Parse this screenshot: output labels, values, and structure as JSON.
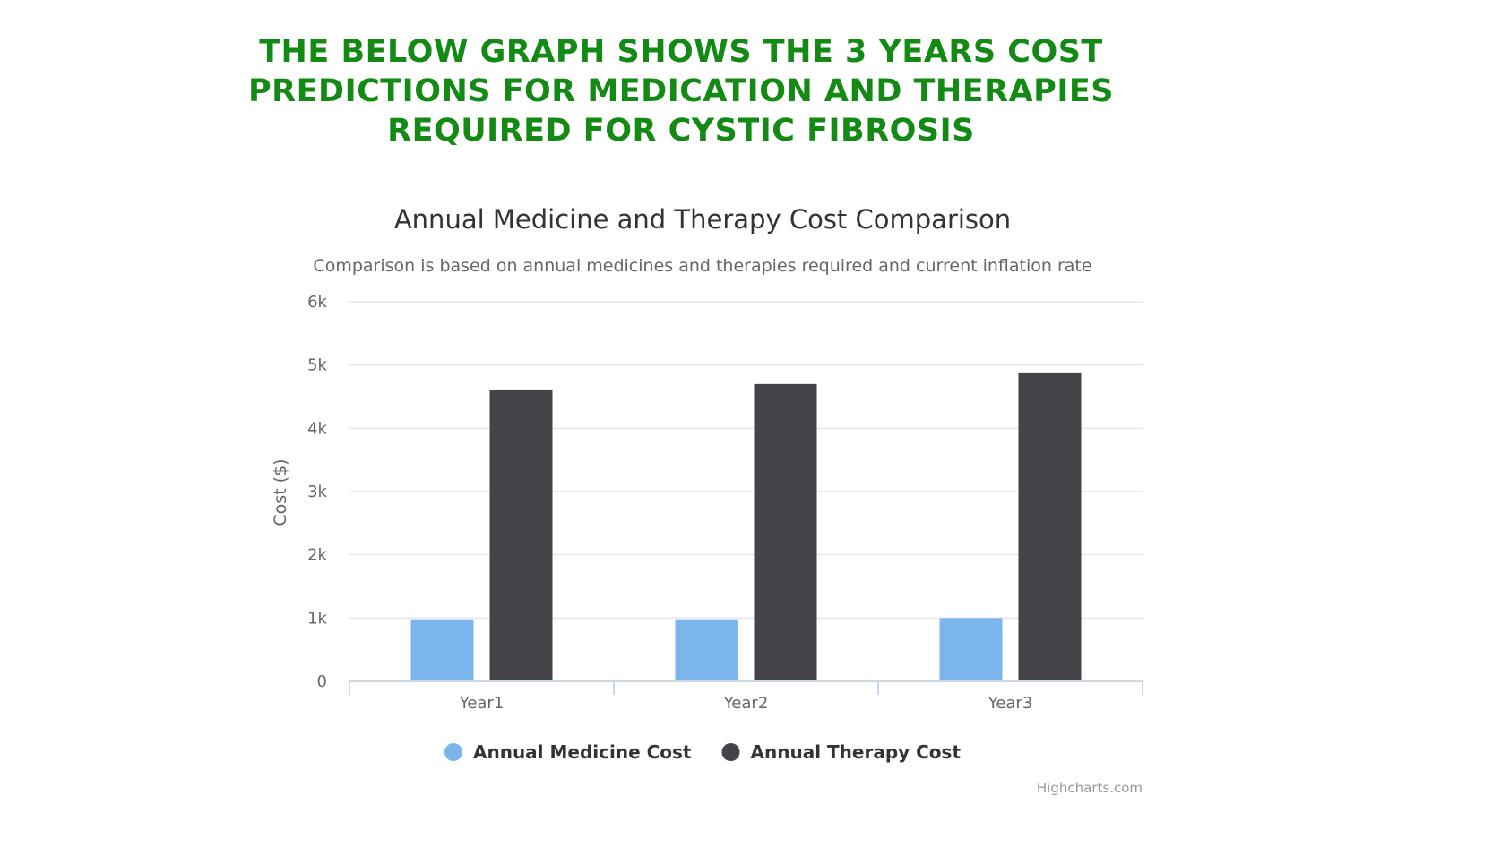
{
  "headline": "THE BELOW GRAPH SHOWS THE 3 YEARS COST PREDICTIONS FOR MEDICATION AND THERAPIES REQUIRED FOR CYSTIC FIBROSIS",
  "credit": "Highcharts.com",
  "chart_data": {
    "type": "bar",
    "title": "Annual Medicine and Therapy Cost Comparison",
    "subtitle": "Comparison is based on annual medicines and therapies required and current inflation rate",
    "xlabel": "",
    "ylabel": "Cost ($)",
    "ylim": [
      0,
      6000
    ],
    "yticks": [
      0,
      1000,
      2000,
      3000,
      4000,
      5000,
      6000
    ],
    "ytick_labels": [
      "0",
      "1k",
      "2k",
      "3k",
      "4k",
      "5k",
      "6k"
    ],
    "categories": [
      "Year1",
      "Year2",
      "Year3"
    ],
    "grid": true,
    "legend": "bottom-center",
    "series": [
      {
        "name": "Annual Medicine Cost",
        "color": "#7cb5ec",
        "values": [
          980,
          980,
          1000
        ]
      },
      {
        "name": "Annual Therapy Cost",
        "color": "#434348",
        "values": [
          4600,
          4700,
          4870
        ]
      }
    ]
  }
}
